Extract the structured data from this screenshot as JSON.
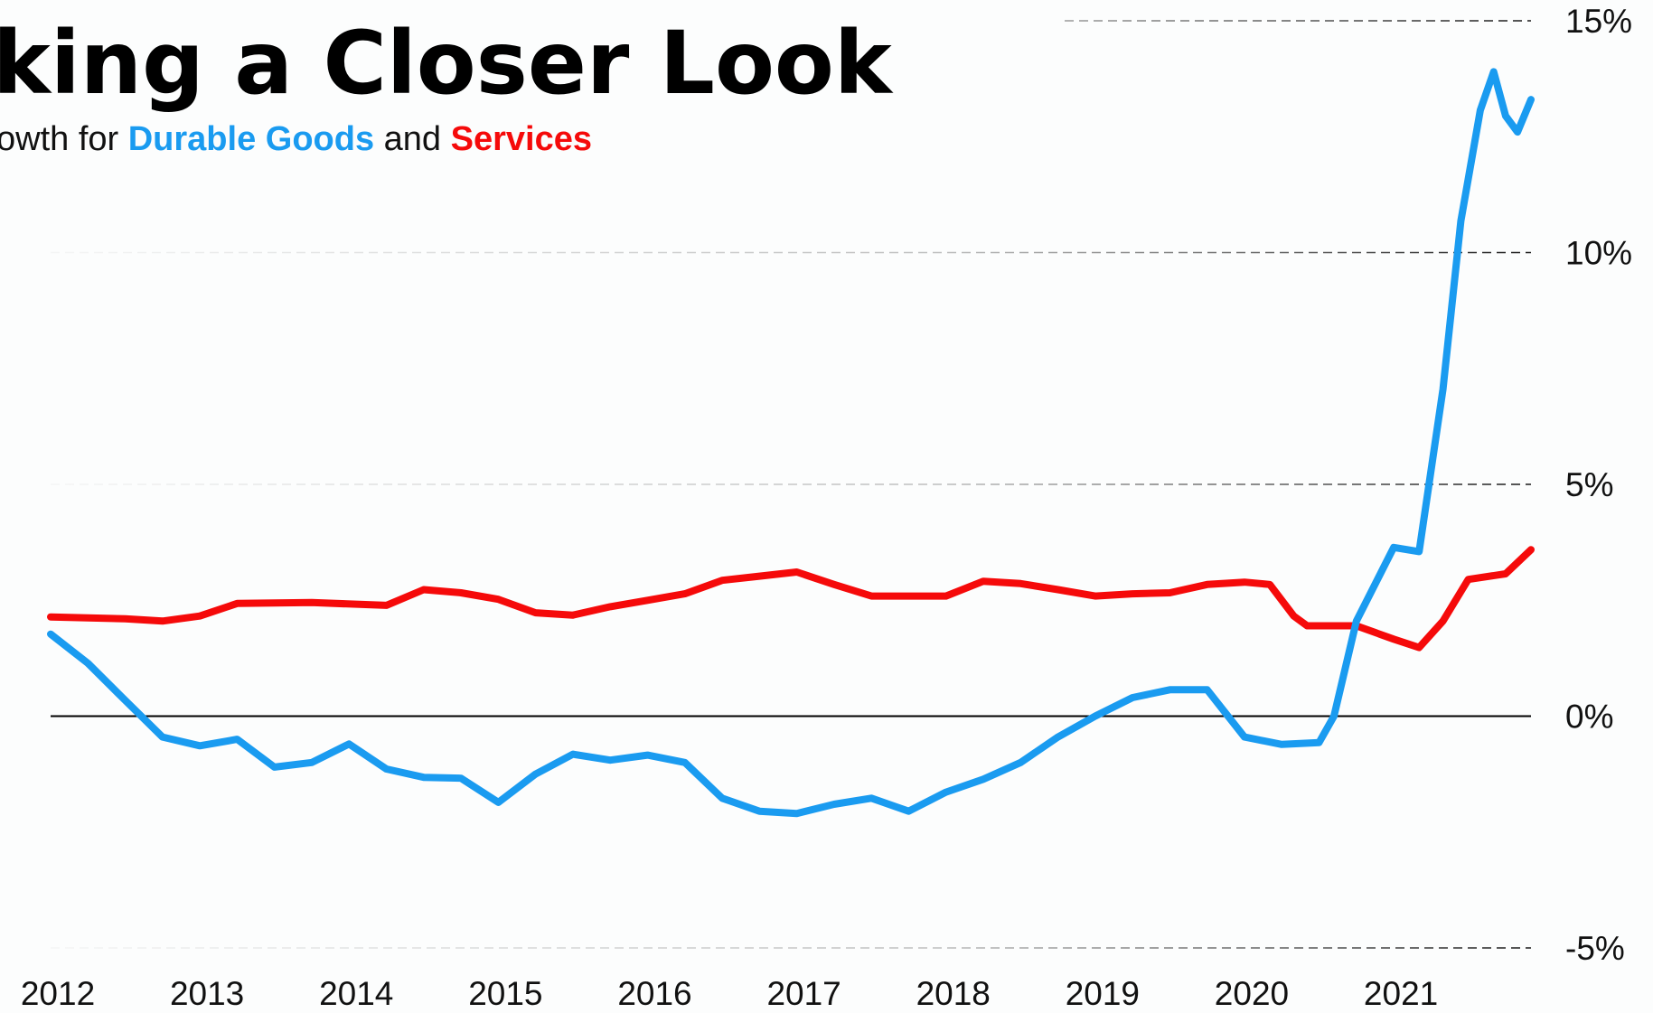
{
  "chart_data": {
    "type": "line",
    "title": "king a Closer Look",
    "subtitle": {
      "prefix": "owth for ",
      "middle": " and "
    },
    "series": [
      {
        "name": "Durable Goods",
        "color": "#1a9bf0",
        "x": [
          2012.0,
          2012.25,
          2012.5,
          2012.75,
          2013.0,
          2013.25,
          2013.5,
          2013.75,
          2014.0,
          2014.25,
          2014.5,
          2014.75,
          2015.0,
          2015.25,
          2015.5,
          2015.75,
          2016.0,
          2016.25,
          2016.5,
          2016.75,
          2017.0,
          2017.25,
          2017.5,
          2017.75,
          2018.0,
          2018.25,
          2018.5,
          2018.75,
          2019.0,
          2019.25,
          2019.5,
          2019.75,
          2020.0,
          2020.25,
          2020.5,
          2020.6,
          2020.75,
          2021.0,
          2021.17,
          2021.33,
          2021.45,
          2021.58,
          2021.67,
          2021.75,
          2021.83,
          2021.92
        ],
        "values": [
          1.77,
          1.14,
          0.34,
          -0.45,
          -0.64,
          -0.5,
          -1.1,
          -1.0,
          -0.6,
          -1.14,
          -1.32,
          -1.34,
          -1.86,
          -1.25,
          -0.82,
          -0.95,
          -0.84,
          -1.0,
          -1.77,
          -2.05,
          -2.1,
          -1.9,
          -1.77,
          -2.05,
          -1.64,
          -1.36,
          -1.0,
          -0.45,
          0,
          0.4,
          0.57,
          0.57,
          -0.45,
          -0.61,
          -0.57,
          0,
          2.05,
          3.64,
          3.55,
          7.05,
          10.68,
          13.07,
          13.9,
          12.95,
          12.6,
          13.3
        ]
      },
      {
        "name": "Services",
        "color": "#f50a0a",
        "x": [
          2012.0,
          2012.5,
          2012.75,
          2013.0,
          2013.25,
          2013.75,
          2014.25,
          2014.5,
          2014.75,
          2015.0,
          2015.25,
          2015.5,
          2015.75,
          2016.0,
          2016.25,
          2016.5,
          2016.75,
          2017.0,
          2017.25,
          2017.5,
          2017.75,
          2018.0,
          2018.25,
          2018.5,
          2018.75,
          2019.0,
          2019.25,
          2019.5,
          2019.75,
          2020.0,
          2020.17,
          2020.33,
          2020.42,
          2020.75,
          2021.0,
          2021.17,
          2021.33,
          2021.5,
          2021.75,
          2021.92
        ],
        "values": [
          2.14,
          2.1,
          2.05,
          2.16,
          2.43,
          2.45,
          2.39,
          2.73,
          2.66,
          2.52,
          2.23,
          2.18,
          2.36,
          2.5,
          2.64,
          2.93,
          3.02,
          3.11,
          2.84,
          2.59,
          2.59,
          2.59,
          2.91,
          2.86,
          2.73,
          2.59,
          2.64,
          2.66,
          2.84,
          2.89,
          2.84,
          2.16,
          1.95,
          1.95,
          1.66,
          1.48,
          2.05,
          2.95,
          3.07,
          3.59
        ]
      }
    ],
    "xlim": [
      2012,
      2021.92
    ],
    "xticks": [
      2012,
      2013,
      2014,
      2015,
      2016,
      2017,
      2018,
      2019,
      2020,
      2021
    ],
    "ylim": [
      -5,
      15
    ],
    "yticks": [
      {
        "value": -5,
        "label": "-5%"
      },
      {
        "value": 0,
        "label": "0%"
      },
      {
        "value": 5,
        "label": "5%"
      },
      {
        "value": 10,
        "label": "10%"
      },
      {
        "value": 15,
        "label": "15%"
      }
    ],
    "grid": true
  }
}
